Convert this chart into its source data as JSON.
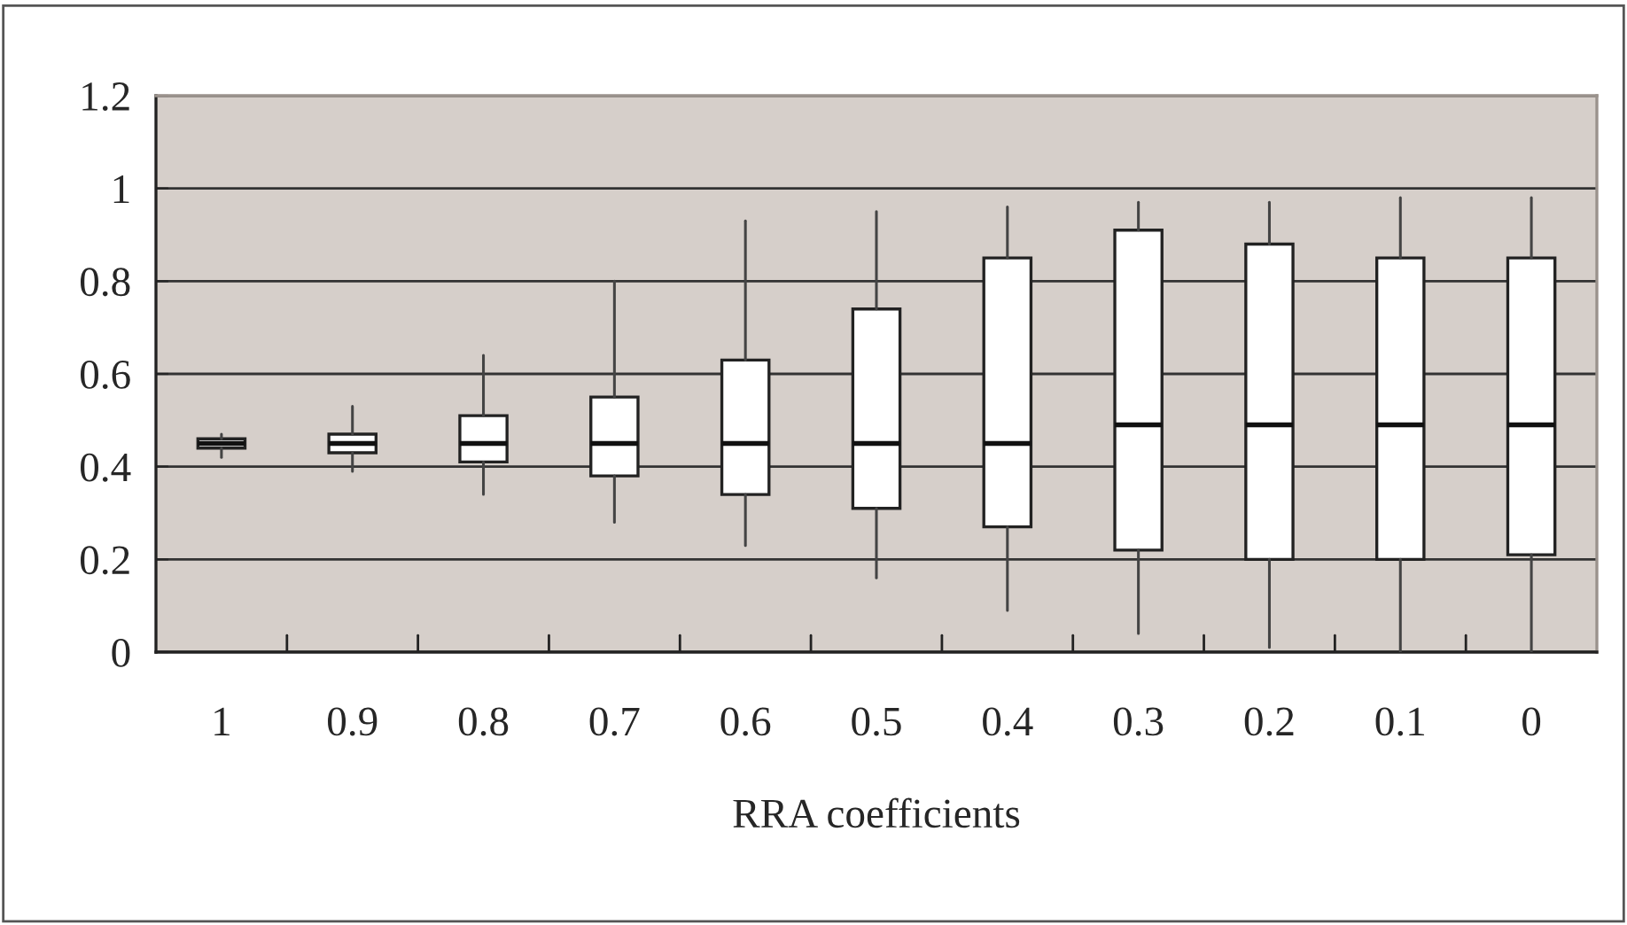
{
  "chart_data": {
    "type": "box",
    "xlabel": "RRA coefficients",
    "categories": [
      "1",
      "0.9",
      "0.8",
      "0.7",
      "0.6",
      "0.5",
      "0.4",
      "0.3",
      "0.2",
      "0.1",
      "0"
    ],
    "boxes": [
      {
        "low": 0.42,
        "q1": 0.44,
        "median": 0.45,
        "q3": 0.46,
        "high": 0.47
      },
      {
        "low": 0.39,
        "q1": 0.43,
        "median": 0.45,
        "q3": 0.47,
        "high": 0.53
      },
      {
        "low": 0.34,
        "q1": 0.41,
        "median": 0.45,
        "q3": 0.51,
        "high": 0.64
      },
      {
        "low": 0.28,
        "q1": 0.38,
        "median": 0.45,
        "q3": 0.55,
        "high": 0.8
      },
      {
        "low": 0.23,
        "q1": 0.34,
        "median": 0.45,
        "q3": 0.63,
        "high": 0.93
      },
      {
        "low": 0.16,
        "q1": 0.31,
        "median": 0.45,
        "q3": 0.74,
        "high": 0.95
      },
      {
        "low": 0.09,
        "q1": 0.27,
        "median": 0.45,
        "q3": 0.85,
        "high": 0.96
      },
      {
        "low": 0.04,
        "q1": 0.22,
        "median": 0.49,
        "q3": 0.91,
        "high": 0.97
      },
      {
        "low": 0.01,
        "q1": 0.2,
        "median": 0.49,
        "q3": 0.88,
        "high": 0.97
      },
      {
        "low": 0.0,
        "q1": 0.2,
        "median": 0.49,
        "q3": 0.85,
        "high": 0.98
      },
      {
        "low": 0.0,
        "q1": 0.21,
        "median": 0.49,
        "q3": 0.85,
        "high": 0.98
      }
    ],
    "ylim": [
      0,
      1.2
    ],
    "yticks": [
      0,
      0.2,
      0.4,
      0.6,
      0.8,
      1,
      1.2
    ],
    "grid": "y"
  }
}
